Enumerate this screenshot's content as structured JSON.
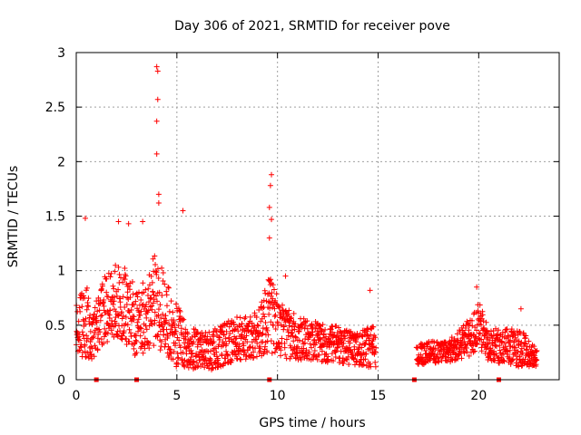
{
  "chart_data": {
    "type": "scatter",
    "title": "Day 306 of 2021, SRMTID for receiver pove",
    "xlabel": "GPS time / hours",
    "ylabel": "SRMTID / TECUs",
    "xlim": [
      0,
      24
    ],
    "ylim": [
      0,
      3
    ],
    "x_ticks": [
      0,
      5,
      10,
      15,
      20
    ],
    "y_ticks": [
      0,
      0.5,
      1,
      1.5,
      2,
      2.5,
      3
    ],
    "grid": true,
    "marker": "plus",
    "color": "#ff0000",
    "gaps_hours": [
      [
        14.9,
        16.9
      ]
    ],
    "zero_marks_x": [
      1.0,
      3.0,
      9.6,
      16.8,
      21.0
    ],
    "peaks": [
      {
        "x": 4.0,
        "y": 2.87
      },
      {
        "x": 4.05,
        "y": 2.83
      },
      {
        "x": 4.05,
        "y": 2.57
      },
      {
        "x": 4.0,
        "y": 2.37
      },
      {
        "x": 4.0,
        "y": 2.07
      },
      {
        "x": 4.1,
        "y": 1.7
      },
      {
        "x": 4.1,
        "y": 1.62
      },
      {
        "x": 3.3,
        "y": 1.45
      },
      {
        "x": 5.3,
        "y": 1.55
      },
      {
        "x": 0.45,
        "y": 1.48
      },
      {
        "x": 2.1,
        "y": 1.45
      },
      {
        "x": 2.6,
        "y": 1.43
      },
      {
        "x": 9.7,
        "y": 1.88
      },
      {
        "x": 9.65,
        "y": 1.78
      },
      {
        "x": 9.6,
        "y": 1.58
      },
      {
        "x": 9.7,
        "y": 1.47
      },
      {
        "x": 9.6,
        "y": 1.3
      },
      {
        "x": 10.4,
        "y": 0.95
      },
      {
        "x": 14.6,
        "y": 0.82
      },
      {
        "x": 19.9,
        "y": 0.85
      },
      {
        "x": 22.1,
        "y": 0.65
      }
    ],
    "envelope": [
      {
        "x": 0.0,
        "center": 0.45,
        "spread": 0.25
      },
      {
        "x": 0.5,
        "center": 0.55,
        "spread": 0.35
      },
      {
        "x": 0.8,
        "center": 0.35,
        "spread": 0.2
      },
      {
        "x": 1.2,
        "center": 0.6,
        "spread": 0.3
      },
      {
        "x": 2.0,
        "center": 0.75,
        "spread": 0.35
      },
      {
        "x": 2.6,
        "center": 0.65,
        "spread": 0.35
      },
      {
        "x": 3.0,
        "center": 0.5,
        "spread": 0.3
      },
      {
        "x": 3.5,
        "center": 0.6,
        "spread": 0.35
      },
      {
        "x": 4.0,
        "center": 0.75,
        "spread": 0.45
      },
      {
        "x": 4.5,
        "center": 0.55,
        "spread": 0.35
      },
      {
        "x": 5.0,
        "center": 0.4,
        "spread": 0.3
      },
      {
        "x": 5.5,
        "center": 0.3,
        "spread": 0.2
      },
      {
        "x": 6.0,
        "center": 0.28,
        "spread": 0.18
      },
      {
        "x": 6.5,
        "center": 0.25,
        "spread": 0.18
      },
      {
        "x": 7.0,
        "center": 0.3,
        "spread": 0.2
      },
      {
        "x": 8.0,
        "center": 0.38,
        "spread": 0.2
      },
      {
        "x": 9.0,
        "center": 0.4,
        "spread": 0.22
      },
      {
        "x": 9.6,
        "center": 0.6,
        "spread": 0.35
      },
      {
        "x": 10.2,
        "center": 0.45,
        "spread": 0.25
      },
      {
        "x": 11.0,
        "center": 0.38,
        "spread": 0.2
      },
      {
        "x": 12.0,
        "center": 0.35,
        "spread": 0.18
      },
      {
        "x": 13.0,
        "center": 0.32,
        "spread": 0.17
      },
      {
        "x": 14.0,
        "center": 0.28,
        "spread": 0.15
      },
      {
        "x": 14.8,
        "center": 0.3,
        "spread": 0.2
      },
      {
        "x": 16.9,
        "center": 0.22,
        "spread": 0.1
      },
      {
        "x": 17.5,
        "center": 0.25,
        "spread": 0.1
      },
      {
        "x": 18.5,
        "center": 0.26,
        "spread": 0.1
      },
      {
        "x": 19.5,
        "center": 0.38,
        "spread": 0.18
      },
      {
        "x": 20.0,
        "center": 0.5,
        "spread": 0.22
      },
      {
        "x": 20.5,
        "center": 0.32,
        "spread": 0.15
      },
      {
        "x": 21.5,
        "center": 0.3,
        "spread": 0.17
      },
      {
        "x": 22.0,
        "center": 0.3,
        "spread": 0.18
      },
      {
        "x": 22.9,
        "center": 0.2,
        "spread": 0.08
      }
    ]
  }
}
